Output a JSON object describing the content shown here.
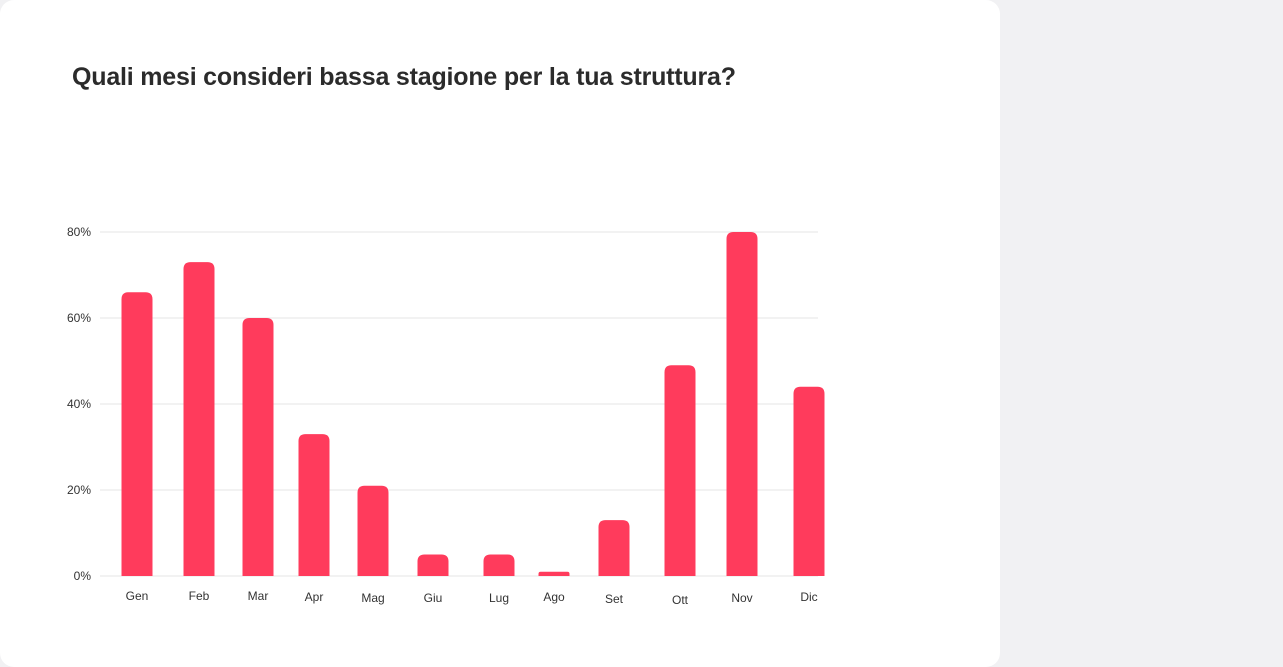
{
  "colors": {
    "bar": "#ff3b5c",
    "grid": "#e6e6e6",
    "text": "#333333",
    "background": "#ffffff"
  },
  "chart_data": {
    "type": "bar",
    "title": "Quali mesi consideri bassa stagione per la tua struttura?",
    "xlabel": "",
    "ylabel": "",
    "categories": [
      "Gen",
      "Feb",
      "Mar",
      "Apr",
      "Mag",
      "Giu",
      "Lug",
      "Ago",
      "Set",
      "Ott",
      "Nov",
      "Dic"
    ],
    "values": [
      66,
      73,
      60,
      33,
      21,
      5,
      5,
      1,
      13,
      49,
      80,
      44
    ],
    "ylim": [
      0,
      80
    ],
    "yticks": [
      0,
      20,
      40,
      60,
      80
    ],
    "ytick_labels": [
      "0%",
      "20%",
      "40%",
      "60%",
      "80%"
    ],
    "grid": true,
    "legend": "none"
  }
}
